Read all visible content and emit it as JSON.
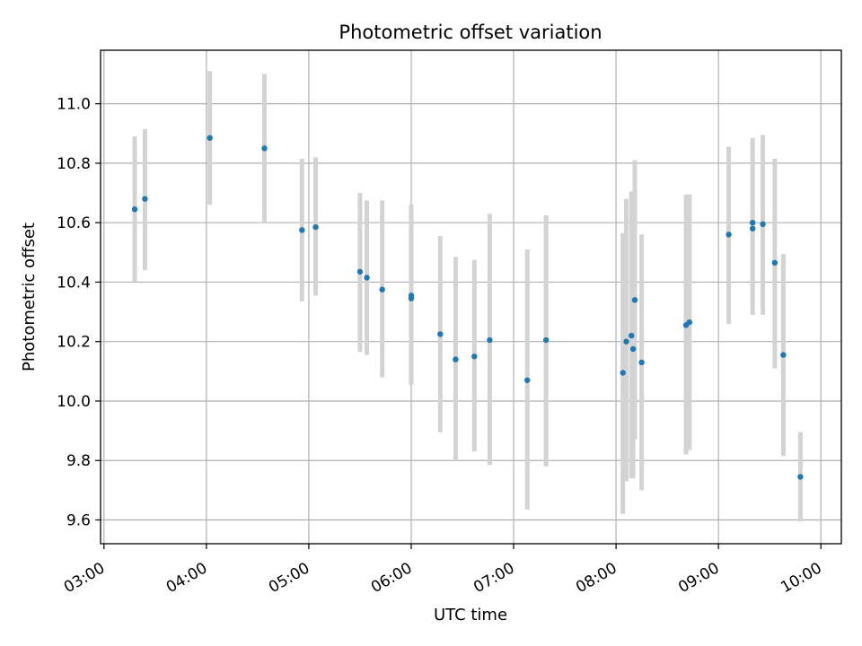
{
  "chart_data": {
    "type": "scatter",
    "title": "Photometric offset variation",
    "xlabel": "UTC time",
    "ylabel": "Photometric offset",
    "xlim_minutes": [
      178,
      612
    ],
    "ylim": [
      9.52,
      11.18
    ],
    "grid": true,
    "x_ticks": [
      {
        "minute": 180,
        "label": "03:00"
      },
      {
        "minute": 240,
        "label": "04:00"
      },
      {
        "minute": 300,
        "label": "05:00"
      },
      {
        "minute": 360,
        "label": "06:00"
      },
      {
        "minute": 420,
        "label": "07:00"
      },
      {
        "minute": 480,
        "label": "08:00"
      },
      {
        "minute": 540,
        "label": "09:00"
      },
      {
        "minute": 600,
        "label": "10:00"
      }
    ],
    "y_ticks": [
      9.6,
      9.8,
      10.0,
      10.2,
      10.4,
      10.6,
      10.8,
      11.0
    ],
    "points": [
      {
        "time": "03:18",
        "y": 10.645,
        "lo": 10.4,
        "hi": 10.89
      },
      {
        "time": "03:24",
        "y": 10.68,
        "lo": 10.44,
        "hi": 10.915
      },
      {
        "time": "04:02",
        "y": 10.885,
        "lo": 10.66,
        "hi": 11.11
      },
      {
        "time": "04:34",
        "y": 10.85,
        "lo": 10.6,
        "hi": 11.1
      },
      {
        "time": "04:56",
        "y": 10.575,
        "lo": 10.335,
        "hi": 10.815
      },
      {
        "time": "05:04",
        "y": 10.585,
        "lo": 10.355,
        "hi": 10.82
      },
      {
        "time": "05:30",
        "y": 10.435,
        "lo": 10.165,
        "hi": 10.7
      },
      {
        "time": "05:34",
        "y": 10.415,
        "lo": 10.155,
        "hi": 10.675
      },
      {
        "time": "05:43",
        "y": 10.375,
        "lo": 10.08,
        "hi": 10.675
      },
      {
        "time": "06:00",
        "y": 10.355,
        "lo": 10.055,
        "hi": 10.66
      },
      {
        "time": "06:00",
        "y": 10.345,
        "lo": 10.055,
        "hi": 10.66
      },
      {
        "time": "06:17",
        "y": 10.225,
        "lo": 9.895,
        "hi": 10.555
      },
      {
        "time": "06:26",
        "y": 10.14,
        "lo": 9.8,
        "hi": 10.485
      },
      {
        "time": "06:37",
        "y": 10.15,
        "lo": 9.83,
        "hi": 10.475
      },
      {
        "time": "06:46",
        "y": 10.205,
        "lo": 9.785,
        "hi": 10.63
      },
      {
        "time": "07:08",
        "y": 10.07,
        "lo": 9.635,
        "hi": 10.51
      },
      {
        "time": "07:19",
        "y": 10.205,
        "lo": 9.78,
        "hi": 10.625
      },
      {
        "time": "08:04",
        "y": 10.095,
        "lo": 9.62,
        "hi": 10.565
      },
      {
        "time": "08:06",
        "y": 10.2,
        "lo": 9.73,
        "hi": 10.68
      },
      {
        "time": "08:09",
        "y": 10.22,
        "lo": 9.74,
        "hi": 10.705
      },
      {
        "time": "08:10",
        "y": 10.175,
        "lo": 9.74,
        "hi": 10.61
      },
      {
        "time": "08:11",
        "y": 10.34,
        "lo": 9.87,
        "hi": 10.81
      },
      {
        "time": "08:15",
        "y": 10.13,
        "lo": 9.7,
        "hi": 10.56
      },
      {
        "time": "08:41",
        "y": 10.255,
        "lo": 9.82,
        "hi": 10.695
      },
      {
        "time": "08:43",
        "y": 10.265,
        "lo": 9.835,
        "hi": 10.695
      },
      {
        "time": "09:06",
        "y": 10.56,
        "lo": 10.26,
        "hi": 10.855
      },
      {
        "time": "09:20",
        "y": 10.58,
        "lo": 10.29,
        "hi": 10.87
      },
      {
        "time": "09:20",
        "y": 10.6,
        "lo": 10.315,
        "hi": 10.885
      },
      {
        "time": "09:26",
        "y": 10.595,
        "lo": 10.29,
        "hi": 10.895
      },
      {
        "time": "09:33",
        "y": 10.465,
        "lo": 10.11,
        "hi": 10.815
      },
      {
        "time": "09:38",
        "y": 10.155,
        "lo": 9.815,
        "hi": 10.495
      },
      {
        "time": "09:48",
        "y": 9.745,
        "lo": 9.595,
        "hi": 9.895
      }
    ],
    "point_color": "#1f77b4",
    "errorbar_color": "#d3d3d3"
  }
}
